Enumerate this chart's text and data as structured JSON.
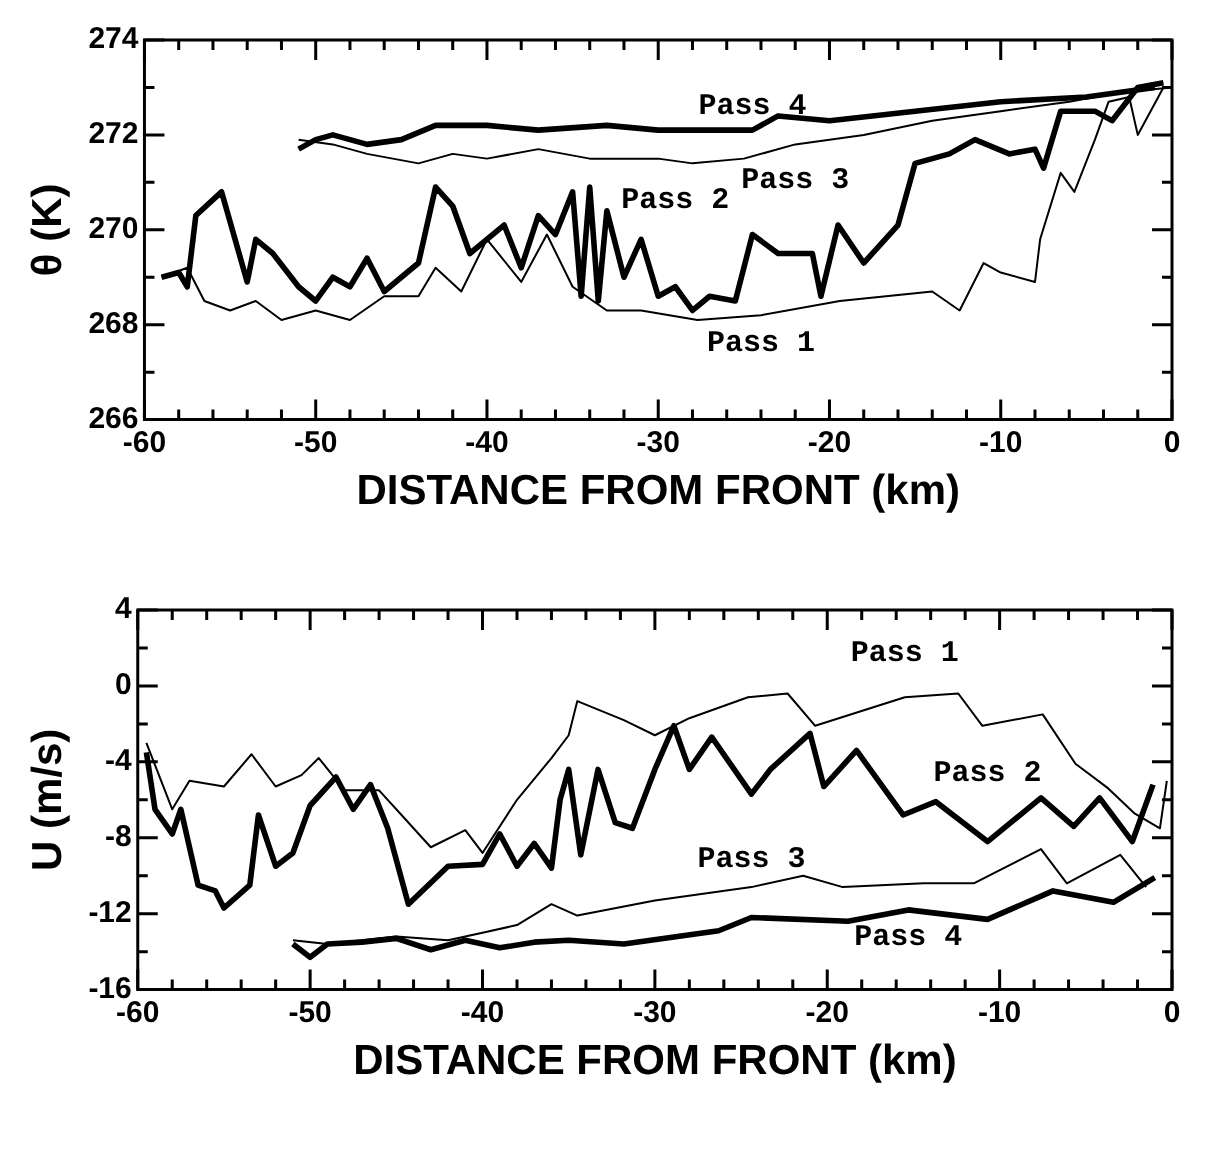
{
  "chart_data": [
    {
      "type": "line",
      "ylabel": "θ (K)",
      "xlabel": "DISTANCE FROM FRONT (km)",
      "xlim": [
        -60,
        0
      ],
      "ylim": [
        266,
        274
      ],
      "xticks": [
        -60,
        {
          "value": -58,
          "label": null
        },
        {
          "value": -56,
          "label": null
        },
        {
          "value": -54,
          "label": null
        },
        {
          "value": -52,
          "label": null
        },
        -50,
        {
          "value": -48,
          "label": null
        },
        {
          "value": -46,
          "label": null
        },
        {
          "value": -44,
          "label": null
        },
        {
          "value": -42,
          "label": null
        },
        -40,
        {
          "value": -38,
          "label": null
        },
        {
          "value": -36,
          "label": null
        },
        {
          "value": -34,
          "label": null
        },
        {
          "value": -32,
          "label": null
        },
        -30,
        {
          "value": -28,
          "label": null
        },
        {
          "value": -26,
          "label": null
        },
        {
          "value": -24,
          "label": null
        },
        {
          "value": -22,
          "label": null
        },
        -20,
        {
          "value": -18,
          "label": null
        },
        {
          "value": -16,
          "label": null
        },
        {
          "value": -14,
          "label": null
        },
        {
          "value": -12,
          "label": null
        },
        -10,
        {
          "value": -8,
          "label": null
        },
        {
          "value": -6,
          "label": null
        },
        {
          "value": -4,
          "label": null
        },
        {
          "value": -2,
          "label": null
        },
        0
      ],
      "yticks": [
        266,
        {
          "value": 267,
          "label": null
        },
        268,
        {
          "value": 269,
          "label": null
        },
        270,
        {
          "value": 271,
          "label": null
        },
        272,
        {
          "value": 273,
          "label": null
        },
        274
      ],
      "grid": false,
      "marker": "none",
      "line_style": "solid",
      "series": [
        {
          "name": "Pass 1",
          "color": "#000000",
          "x": [
            -59,
            -57.5,
            -56.5,
            -55,
            -53.5,
            -52,
            -50,
            -48,
            -46,
            -44,
            -43,
            -41.5,
            -40,
            -38,
            -36.5,
            -35,
            -33,
            -31,
            -27.7,
            -24,
            -19.4,
            -14,
            -12.4,
            -11,
            -10,
            -8,
            -7.7,
            -6.5,
            -5.7,
            -4.5,
            -3.7,
            -2.5,
            -2,
            -0.5
          ],
          "values": [
            269.0,
            269.2,
            268.5,
            268.3,
            268.5,
            268.1,
            268.3,
            268.1,
            268.6,
            268.6,
            269.2,
            268.7,
            269.8,
            268.9,
            269.9,
            268.8,
            268.3,
            268.3,
            268.1,
            268.2,
            268.5,
            268.7,
            268.3,
            269.3,
            269.1,
            268.9,
            269.8,
            271.2,
            270.8,
            271.9,
            272.7,
            272.8,
            272.0,
            273.0
          ]
        },
        {
          "name": "Pass 2",
          "color": "#000000",
          "x": [
            -59,
            -58,
            -57.5,
            -57,
            -55.5,
            -54,
            -53.5,
            -52.5,
            -51,
            -50,
            -49,
            -48,
            -47,
            -46,
            -44,
            -43,
            -42,
            -41,
            -39,
            -38,
            -37,
            -36,
            -35,
            -34.5,
            -34,
            -33.5,
            -33,
            -32,
            -31,
            -30,
            -29,
            -28,
            -27,
            -25.5,
            -24.5,
            -23,
            -21,
            -20.5,
            -19.5,
            -18,
            -17,
            -16,
            -15,
            -13,
            -11.5,
            -9.5,
            -8,
            -7.5,
            -6.5,
            -4.5,
            -3.5,
            -2,
            -0.5
          ],
          "values": [
            269.0,
            269.1,
            268.8,
            270.3,
            270.8,
            268.9,
            269.8,
            269.5,
            268.8,
            268.5,
            269.0,
            268.8,
            269.4,
            268.7,
            269.3,
            270.9,
            270.5,
            269.5,
            270.1,
            269.2,
            270.3,
            269.9,
            270.8,
            268.6,
            270.9,
            268.5,
            270.4,
            269.0,
            269.8,
            268.6,
            268.8,
            268.3,
            268.6,
            268.5,
            269.9,
            269.5,
            269.5,
            268.6,
            270.1,
            269.3,
            269.7,
            270.1,
            271.4,
            271.6,
            271.9,
            271.6,
            271.7,
            271.3,
            272.5,
            272.5,
            272.3,
            273.0,
            273.1
          ]
        },
        {
          "name": "Pass 3",
          "color": "#000000",
          "x": [
            -51,
            -49,
            -47,
            -44,
            -42,
            -40,
            -37,
            -34,
            -30,
            -28,
            -25,
            -22,
            -18,
            -14,
            -10,
            -6,
            -3,
            0
          ],
          "values": [
            271.9,
            271.8,
            271.6,
            271.4,
            271.6,
            271.5,
            271.7,
            271.5,
            271.5,
            271.4,
            271.5,
            271.8,
            272.0,
            272.3,
            272.5,
            272.7,
            272.9,
            273.0
          ]
        },
        {
          "name": "Pass 4",
          "color": "#000000",
          "x": [
            -51,
            -50,
            -49,
            -47,
            -45,
            -43,
            -40,
            -37,
            -33,
            -30,
            -27,
            -24.5,
            -23,
            -20,
            -15,
            -10,
            -5,
            -1
          ],
          "values": [
            271.7,
            271.9,
            272.0,
            271.8,
            271.9,
            272.2,
            272.2,
            272.1,
            272.2,
            272.1,
            272.1,
            272.1,
            272.4,
            272.3,
            272.5,
            272.7,
            272.8,
            273.0
          ]
        }
      ]
    },
    {
      "type": "line",
      "ylabel": "U (m/s)",
      "xlabel": "DISTANCE FROM FRONT (km)",
      "xlim": [
        -60,
        0
      ],
      "ylim": [
        -16,
        4
      ],
      "xticks": [
        -60,
        {
          "value": -58,
          "label": null
        },
        {
          "value": -56,
          "label": null
        },
        {
          "value": -54,
          "label": null
        },
        {
          "value": -52,
          "label": null
        },
        -50,
        {
          "value": -48,
          "label": null
        },
        {
          "value": -46,
          "label": null
        },
        {
          "value": -44,
          "label": null
        },
        {
          "value": -42,
          "label": null
        },
        -40,
        {
          "value": -38,
          "label": null
        },
        {
          "value": -36,
          "label": null
        },
        {
          "value": -34,
          "label": null
        },
        {
          "value": -32,
          "label": null
        },
        -30,
        {
          "value": -28,
          "label": null
        },
        {
          "value": -26,
          "label": null
        },
        {
          "value": -24,
          "label": null
        },
        {
          "value": -22,
          "label": null
        },
        -20,
        {
          "value": -18,
          "label": null
        },
        {
          "value": -16,
          "label": null
        },
        {
          "value": -14,
          "label": null
        },
        {
          "value": -12,
          "label": null
        },
        -10,
        {
          "value": -8,
          "label": null
        },
        {
          "value": -6,
          "label": null
        },
        {
          "value": -4,
          "label": null
        },
        {
          "value": -2,
          "label": null
        },
        0
      ],
      "yticks": [
        -16,
        {
          "value": -14,
          "label": null
        },
        -12,
        {
          "value": -10,
          "label": null
        },
        -8,
        {
          "value": -6,
          "label": null
        },
        -4,
        {
          "value": -2,
          "label": null
        },
        0,
        {
          "value": 2,
          "label": null
        },
        4
      ],
      "grid": false,
      "marker": "none",
      "line_style": "solid",
      "series": [
        {
          "name": "Pass 1",
          "color": "#000000",
          "x": [
            -59.5,
            -58,
            -57,
            -55,
            -53.4,
            -52,
            -50.5,
            -49.5,
            -48,
            -46,
            -44.5,
            -43,
            -41,
            -40,
            -38,
            -36,
            -35,
            -34.5,
            -31.8,
            -30,
            -28,
            -24.6,
            -22.3,
            -20.7,
            -15.5,
            -12.4,
            -11,
            -7.5,
            -5.6,
            -3.7,
            -2.2,
            -0.7,
            -0.3
          ],
          "values": [
            -3.0,
            -6.5,
            -5.0,
            -5.3,
            -3.6,
            -5.3,
            -4.7,
            -3.8,
            -5.5,
            -5.5,
            -7.0,
            -8.5,
            -7.6,
            -8.8,
            -6.0,
            -3.8,
            -2.6,
            -0.8,
            -1.8,
            -2.6,
            -1.7,
            -0.6,
            -0.4,
            -2.1,
            -0.6,
            -0.4,
            -2.1,
            -1.5,
            -4.1,
            -5.4,
            -6.7,
            -7.5,
            -5.0
          ]
        },
        {
          "name": "Pass 2",
          "color": "#000000",
          "x": [
            -59.5,
            -59,
            -58,
            -57.5,
            -56.5,
            -55.5,
            -55,
            -53.5,
            -53,
            -52,
            -51,
            -50,
            -48.5,
            -47.5,
            -46.5,
            -45.5,
            -44.3,
            -42,
            -40,
            -39,
            -38,
            -37,
            -36,
            -35.5,
            -35,
            -34.3,
            -33.3,
            -32.3,
            -31.3,
            -30,
            -28.9,
            -28,
            -26.7,
            -24.4,
            -23.3,
            -21,
            -20.2,
            -18.3,
            -15.6,
            -13.7,
            -10.7,
            -7.6,
            -5.7,
            -4.2,
            -2.3,
            -1.1
          ],
          "values": [
            -3.5,
            -6.5,
            -7.8,
            -6.5,
            -10.5,
            -10.8,
            -11.7,
            -10.5,
            -6.8,
            -9.5,
            -8.8,
            -6.3,
            -4.8,
            -6.5,
            -5.2,
            -7.5,
            -11.5,
            -9.5,
            -9.4,
            -7.8,
            -9.5,
            -8.3,
            -9.6,
            -6.0,
            -4.4,
            -8.9,
            -4.4,
            -7.2,
            -7.5,
            -4.4,
            -2.1,
            -4.4,
            -2.7,
            -5.7,
            -4.4,
            -2.5,
            -5.3,
            -3.4,
            -6.8,
            -6.1,
            -8.2,
            -5.9,
            -7.4,
            -5.9,
            -8.2,
            -5.2
          ]
        },
        {
          "name": "Pass 3",
          "color": "#000000",
          "x": [
            -51,
            -49,
            -45,
            -42,
            -40,
            -38,
            -36,
            -34.5,
            -30,
            -24.4,
            -21.4,
            -19.1,
            -14.4,
            -11.5,
            -7.6,
            -6.1,
            -3,
            -1.5
          ],
          "values": [
            -13.4,
            -13.6,
            -13.2,
            -13.4,
            -13.0,
            -12.6,
            -11.5,
            -12.1,
            -11.3,
            -10.6,
            -10.0,
            -10.6,
            -10.4,
            -10.4,
            -8.6,
            -10.4,
            -8.9,
            -10.6
          ]
        },
        {
          "name": "Pass 4",
          "color": "#000000",
          "x": [
            -51,
            -50,
            -49,
            -47,
            -45,
            -43,
            -41,
            -39,
            -37,
            -35,
            -31.8,
            -26.3,
            -24.4,
            -18.8,
            -15.3,
            -10.7,
            -6.9,
            -3.4,
            -1
          ],
          "values": [
            -13.6,
            -14.3,
            -13.6,
            -13.5,
            -13.3,
            -13.9,
            -13.4,
            -13.8,
            -13.5,
            -13.4,
            -13.6,
            -12.9,
            -12.2,
            -12.4,
            -11.8,
            -12.3,
            -10.8,
            -11.4,
            -10.1
          ]
        }
      ]
    }
  ]
}
